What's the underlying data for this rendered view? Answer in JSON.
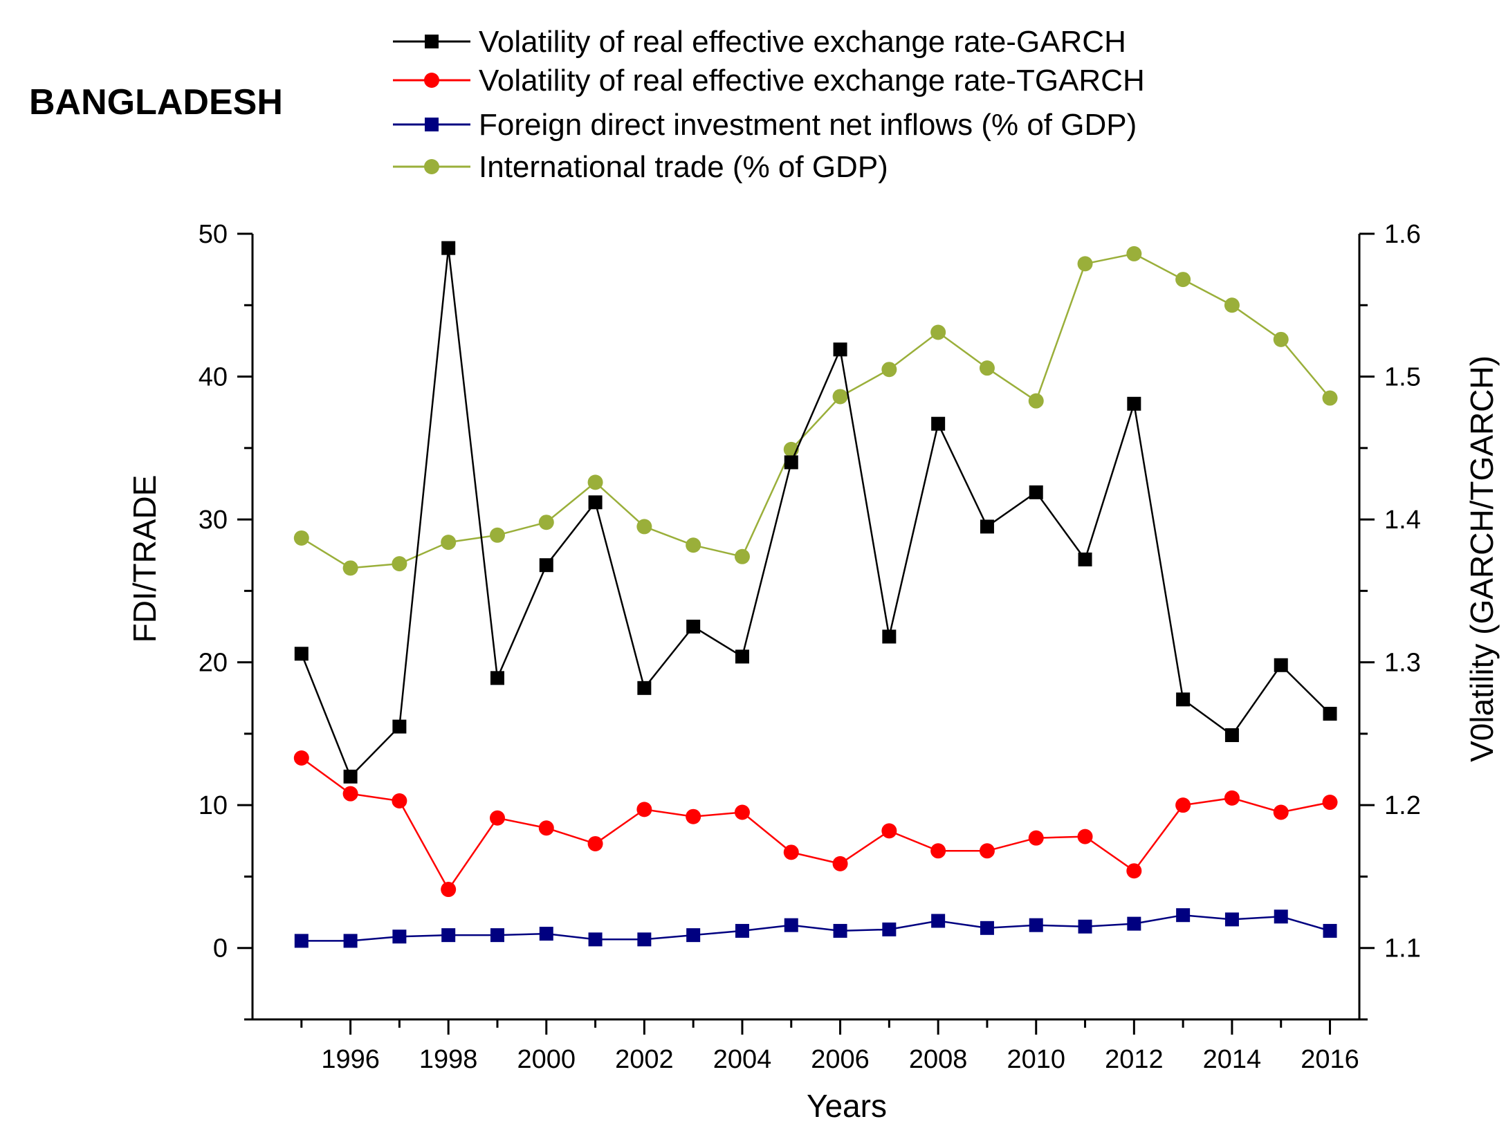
{
  "chart_data": {
    "type": "line",
    "title": "BANGLADESH",
    "xlabel": "Years",
    "ylabel": "FDI/TRADE",
    "ylabel_right": "V0latility (GARCH/TGARCH)",
    "x": [
      1995,
      1996,
      1997,
      1998,
      1999,
      2000,
      2001,
      2002,
      2003,
      2004,
      2005,
      2006,
      2007,
      2008,
      2009,
      2010,
      2011,
      2012,
      2013,
      2014,
      2015,
      2016
    ],
    "xlim": [
      1994,
      2016.6
    ],
    "ylim_left": [
      -5,
      50
    ],
    "ylim_right": [
      1.05,
      1.6
    ],
    "x_ticks": [
      "1996",
      "1998",
      "2000",
      "2002",
      "2004",
      "2006",
      "2008",
      "2010",
      "2012",
      "2014",
      "2016"
    ],
    "y_left_ticks": [
      "0",
      "10",
      "20",
      "30",
      "40",
      "50"
    ],
    "y_right_ticks": [
      "1.1",
      "1.2",
      "1.3",
      "1.4",
      "1.5",
      "1.6"
    ],
    "legend_position": "top",
    "series": [
      {
        "name": "Volatility of real effective exchange rate-GARCH",
        "axis": "right",
        "marker": "square",
        "color": "#000000",
        "values": [
          1.306,
          1.22,
          1.255,
          1.59,
          1.289,
          1.368,
          1.412,
          1.282,
          1.325,
          1.304,
          1.44,
          1.519,
          1.318,
          1.467,
          1.395,
          1.419,
          1.372,
          1.481,
          1.274,
          1.249,
          1.298,
          1.264
        ]
      },
      {
        "name": "Volatility of real effective exchange rate-TGARCH",
        "axis": "right",
        "marker": "circle",
        "color": "#ff0000",
        "values": [
          1.233,
          1.208,
          1.203,
          1.141,
          1.191,
          1.184,
          1.173,
          1.197,
          1.192,
          1.195,
          1.167,
          1.159,
          1.182,
          1.168,
          1.168,
          1.177,
          1.178,
          1.154,
          1.2,
          1.205,
          1.195,
          1.202
        ]
      },
      {
        "name": "Foreign direct investment net inflows (% of GDP)",
        "axis": "left",
        "marker": "square",
        "color": "#000080",
        "values": [
          0.5,
          0.5,
          0.8,
          0.9,
          0.9,
          1.0,
          0.6,
          0.6,
          0.9,
          1.2,
          1.6,
          1.2,
          1.3,
          1.9,
          1.4,
          1.6,
          1.5,
          1.7,
          2.3,
          2.0,
          2.2,
          1.2
        ]
      },
      {
        "name": "International trade (% of GDP)",
        "axis": "left",
        "marker": "circle",
        "color": "#9aaf3a",
        "values": [
          28.7,
          26.6,
          26.9,
          28.4,
          28.9,
          29.8,
          32.6,
          29.5,
          28.2,
          27.4,
          34.9,
          38.6,
          40.5,
          43.1,
          40.6,
          38.3,
          47.9,
          48.6,
          46.8,
          45.0,
          42.6,
          38.5
        ]
      }
    ]
  }
}
